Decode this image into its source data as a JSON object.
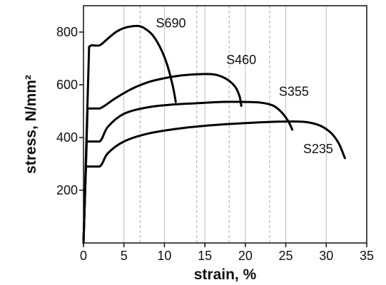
{
  "chart_data": {
    "type": "line",
    "title": "",
    "xlabel": "strain, %",
    "ylabel": "stress, N/mm²",
    "xlim": [
      0,
      35
    ],
    "ylim": [
      0,
      900
    ],
    "xticks": [
      0,
      5,
      10,
      15,
      20,
      25,
      30,
      35
    ],
    "yticks": [
      200,
      400,
      600,
      800
    ],
    "grid": "vertical lines at 5 % steps, dashed lines at 7, 14, 18 and 23 %",
    "series": [
      {
        "name": "S690",
        "x": [
          0,
          0.7,
          1.0,
          2.0,
          3.0,
          4.0,
          5.0,
          6.0,
          6.8,
          7.5,
          8.5,
          9.5,
          10.3,
          11.0,
          11.4
        ],
        "y": [
          0,
          745,
          750,
          750,
          775,
          800,
          815,
          822,
          823,
          815,
          790,
          740,
          680,
          600,
          535
        ]
      },
      {
        "name": "S460",
        "x": [
          0,
          0.5,
          2.0,
          4.0,
          6.0,
          8.0,
          10.0,
          12.0,
          14.0,
          16.0,
          17.0,
          18.0,
          18.8,
          19.3,
          19.5
        ],
        "y": [
          0,
          510,
          510,
          550,
          585,
          610,
          625,
          635,
          640,
          640,
          632,
          615,
          590,
          555,
          520
        ]
      },
      {
        "name": "S355",
        "x": [
          0,
          0.4,
          2.0,
          3.0,
          5.0,
          8.0,
          11.0,
          14.0,
          17.0,
          20.0,
          22.0,
          23.5,
          24.5,
          25.3,
          25.8
        ],
        "y": [
          0,
          385,
          385,
          440,
          490,
          515,
          525,
          530,
          535,
          535,
          532,
          520,
          495,
          462,
          430
        ]
      },
      {
        "name": "S235",
        "x": [
          0,
          0.3,
          2.0,
          3.0,
          5.0,
          8.0,
          12.0,
          16.0,
          20.0,
          24.0,
          27.0,
          29.0,
          30.5,
          31.5,
          32.3
        ],
        "y": [
          0,
          290,
          290,
          340,
          385,
          415,
          435,
          447,
          455,
          460,
          460,
          448,
          420,
          380,
          322
        ]
      }
    ],
    "legend": "labels placed next to each curve"
  }
}
